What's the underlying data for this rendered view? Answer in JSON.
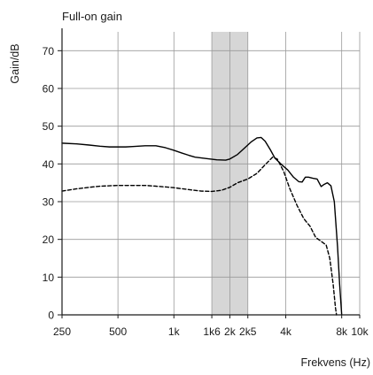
{
  "chart_data": {
    "type": "line",
    "title": "Full-on gain",
    "xlabel": "Frekvens (Hz)",
    "ylabel": "Gain/dB",
    "x_scale": "log",
    "xlim": [
      250,
      10000
    ],
    "ylim": [
      0,
      75
    ],
    "x_ticks": [
      {
        "value": 250,
        "label": "250"
      },
      {
        "value": 500,
        "label": "500"
      },
      {
        "value": 1000,
        "label": "1k"
      },
      {
        "value": 1600,
        "label": "1k6"
      },
      {
        "value": 2000,
        "label": "2k"
      },
      {
        "value": 2500,
        "label": "2k5"
      },
      {
        "value": 4000,
        "label": "4k"
      },
      {
        "value": 8000,
        "label": "8k"
      },
      {
        "value": 10000,
        "label": "10k"
      }
    ],
    "y_ticks": [
      0,
      10,
      20,
      30,
      40,
      50,
      60,
      70
    ],
    "grid": true,
    "legend": "none",
    "highlight_band": {
      "from": 1600,
      "to": 2500,
      "color": "#d6d6d6"
    },
    "series": [
      {
        "style": "solid",
        "color": "#000000",
        "points": [
          [
            250,
            45.5
          ],
          [
            300,
            45.3
          ],
          [
            350,
            45.0
          ],
          [
            400,
            44.7
          ],
          [
            450,
            44.5
          ],
          [
            500,
            44.5
          ],
          [
            550,
            44.5
          ],
          [
            600,
            44.6
          ],
          [
            700,
            44.8
          ],
          [
            800,
            44.8
          ],
          [
            900,
            44.3
          ],
          [
            1000,
            43.6
          ],
          [
            1100,
            42.9
          ],
          [
            1200,
            42.3
          ],
          [
            1300,
            41.8
          ],
          [
            1500,
            41.4
          ],
          [
            1700,
            41.1
          ],
          [
            1900,
            41.0
          ],
          [
            2000,
            41.3
          ],
          [
            2200,
            42.5
          ],
          [
            2400,
            44.2
          ],
          [
            2600,
            45.8
          ],
          [
            2800,
            46.9
          ],
          [
            2950,
            47.0
          ],
          [
            3100,
            46.0
          ],
          [
            3300,
            43.8
          ],
          [
            3500,
            41.5
          ],
          [
            3800,
            39.8
          ],
          [
            4100,
            38.4
          ],
          [
            4400,
            36.5
          ],
          [
            4700,
            35.3
          ],
          [
            4900,
            35.2
          ],
          [
            5100,
            36.5
          ],
          [
            5300,
            36.5
          ],
          [
            5600,
            36.2
          ],
          [
            5900,
            36.0
          ],
          [
            6200,
            34.0
          ],
          [
            6400,
            34.5
          ],
          [
            6700,
            35.0
          ],
          [
            7000,
            34.2
          ],
          [
            7300,
            30.0
          ],
          [
            7600,
            18.0
          ],
          [
            7800,
            8.0
          ],
          [
            8000,
            0.0
          ]
        ]
      },
      {
        "style": "dashed",
        "color": "#000000",
        "points": [
          [
            250,
            32.8
          ],
          [
            300,
            33.4
          ],
          [
            350,
            33.8
          ],
          [
            400,
            34.1
          ],
          [
            450,
            34.2
          ],
          [
            500,
            34.3
          ],
          [
            600,
            34.3
          ],
          [
            700,
            34.3
          ],
          [
            800,
            34.1
          ],
          [
            900,
            33.9
          ],
          [
            1000,
            33.7
          ],
          [
            1200,
            33.2
          ],
          [
            1400,
            32.8
          ],
          [
            1600,
            32.7
          ],
          [
            1800,
            33.0
          ],
          [
            2000,
            33.8
          ],
          [
            2200,
            35.0
          ],
          [
            2500,
            36.0
          ],
          [
            2800,
            37.5
          ],
          [
            3100,
            39.8
          ],
          [
            3400,
            41.8
          ],
          [
            3600,
            41.3
          ],
          [
            3900,
            38.0
          ],
          [
            4200,
            33.5
          ],
          [
            4600,
            29.0
          ],
          [
            5000,
            25.5
          ],
          [
            5400,
            23.5
          ],
          [
            5800,
            20.5
          ],
          [
            6200,
            19.5
          ],
          [
            6600,
            18.5
          ],
          [
            6900,
            15.0
          ],
          [
            7200,
            8.0
          ],
          [
            7400,
            2.0
          ],
          [
            7500,
            0.0
          ]
        ]
      }
    ]
  }
}
